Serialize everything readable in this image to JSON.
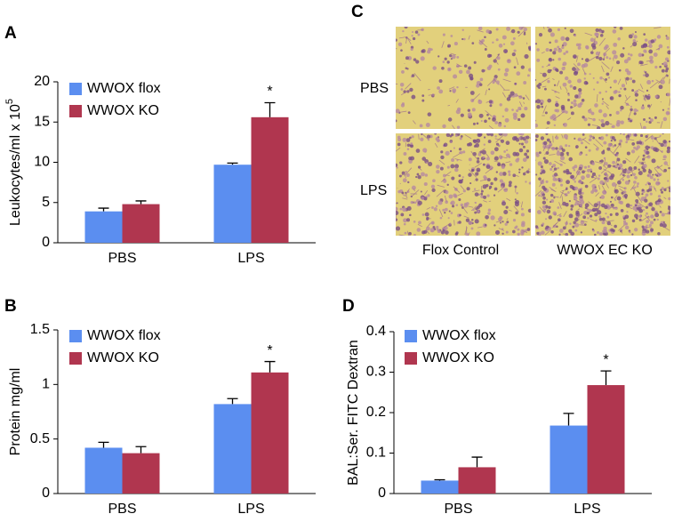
{
  "chart_data": [
    {
      "type": "bar",
      "panel": "A",
      "y_label": "Leukocytes/ml x 10",
      "y_label_exponent": "5",
      "categories": [
        "PBS",
        "LPS"
      ],
      "series": [
        {
          "name": "WWOX flox",
          "color": "#5b8ef0",
          "values": [
            3.9,
            9.7
          ],
          "errors": [
            0.4,
            0.2
          ]
        },
        {
          "name": "WWOX KO",
          "color": "#b0364f",
          "values": [
            4.8,
            15.6
          ],
          "errors": [
            0.4,
            1.8
          ]
        }
      ],
      "ylim": [
        0,
        20
      ],
      "yticks": [
        0,
        5,
        10,
        15,
        20
      ],
      "annotation": "*"
    },
    {
      "type": "bar",
      "panel": "B",
      "y_label": "Protein mg/ml",
      "categories": [
        "PBS",
        "LPS"
      ],
      "series": [
        {
          "name": "WWOX flox",
          "color": "#5b8ef0",
          "values": [
            0.42,
            0.82
          ],
          "errors": [
            0.05,
            0.05
          ]
        },
        {
          "name": "WWOX KO",
          "color": "#b0364f",
          "values": [
            0.37,
            1.11
          ],
          "errors": [
            0.06,
            0.1
          ]
        }
      ],
      "ylim": [
        0,
        1.5
      ],
      "yticks": [
        0,
        0.5,
        1,
        1.5
      ],
      "annotation": "*"
    },
    {
      "type": "bar",
      "panel": "D",
      "y_label": "BAL:Ser. FITC Dextran",
      "categories": [
        "PBS",
        "LPS"
      ],
      "series": [
        {
          "name": "WWOX flox",
          "color": "#5b8ef0",
          "values": [
            0.032,
            0.168
          ],
          "errors": [
            0.002,
            0.03
          ]
        },
        {
          "name": "WWOX KO",
          "color": "#b0364f",
          "values": [
            0.065,
            0.268
          ],
          "errors": [
            0.025,
            0.035
          ]
        }
      ],
      "ylim": [
        0,
        0.4
      ],
      "yticks": [
        0,
        0.1,
        0.2,
        0.3,
        0.4
      ],
      "annotation": "*"
    }
  ],
  "histology": {
    "panel": "C",
    "rows": [
      "PBS",
      "LPS"
    ],
    "columns": [
      "Flox Control",
      "WWOX EC KO"
    ]
  }
}
